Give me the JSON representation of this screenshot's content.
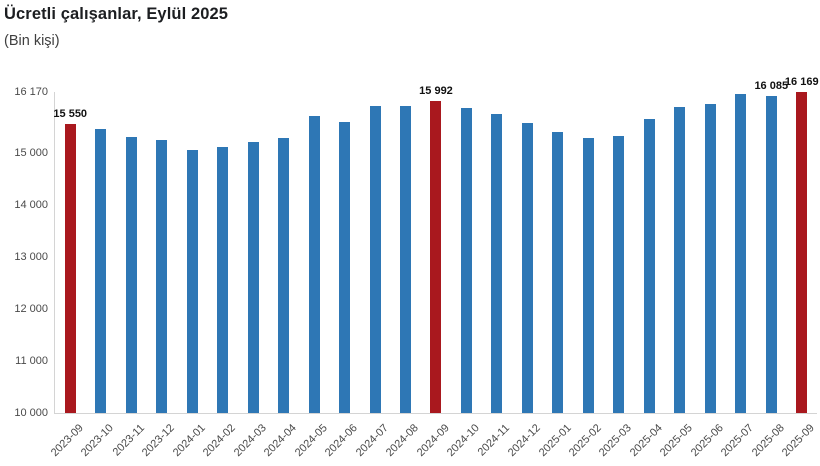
{
  "chart_data": {
    "type": "bar",
    "title": "Ücretli çalışanlar, Eylül 2025",
    "subtitle": "(Bin kişi)",
    "categories": [
      "2023-09",
      "2023-10",
      "2023-11",
      "2023-12",
      "2024-01",
      "2024-02",
      "2024-03",
      "2024-04",
      "2024-05",
      "2024-06",
      "2024-07",
      "2024-08",
      "2024-09",
      "2024-10",
      "2024-11",
      "2024-12",
      "2025-01",
      "2025-02",
      "2025-03",
      "2025-04",
      "2025-05",
      "2025-06",
      "2025-07",
      "2025-08",
      "2025-09"
    ],
    "values": [
      15550,
      15450,
      15310,
      15240,
      15060,
      15120,
      15210,
      15280,
      15710,
      15590,
      15905,
      15900,
      15992,
      15860,
      15740,
      15570,
      15410,
      15290,
      15320,
      15650,
      15880,
      15940,
      16140,
      16085,
      16169
    ],
    "highlighted_categories": [
      "2023-09",
      "2024-09",
      "2025-09"
    ],
    "data_labels": {
      "2023-09": "15 550",
      "2024-09": "15 992",
      "2025-08": "16 085",
      "2025-09": "16 169"
    },
    "ylim": [
      10000,
      16170
    ],
    "yticks": [
      {
        "value": 16170,
        "label": "16 170"
      },
      {
        "value": 15000,
        "label": "15 000"
      },
      {
        "value": 14000,
        "label": "14 000"
      },
      {
        "value": 13000,
        "label": "13 000"
      },
      {
        "value": 12000,
        "label": "12 000"
      },
      {
        "value": 11000,
        "label": "11 000"
      },
      {
        "value": 10000,
        "label": "10 000"
      }
    ],
    "colors": {
      "bar": "#2e77b5",
      "highlight": "#a9181e"
    },
    "grid": false,
    "legend": false
  }
}
